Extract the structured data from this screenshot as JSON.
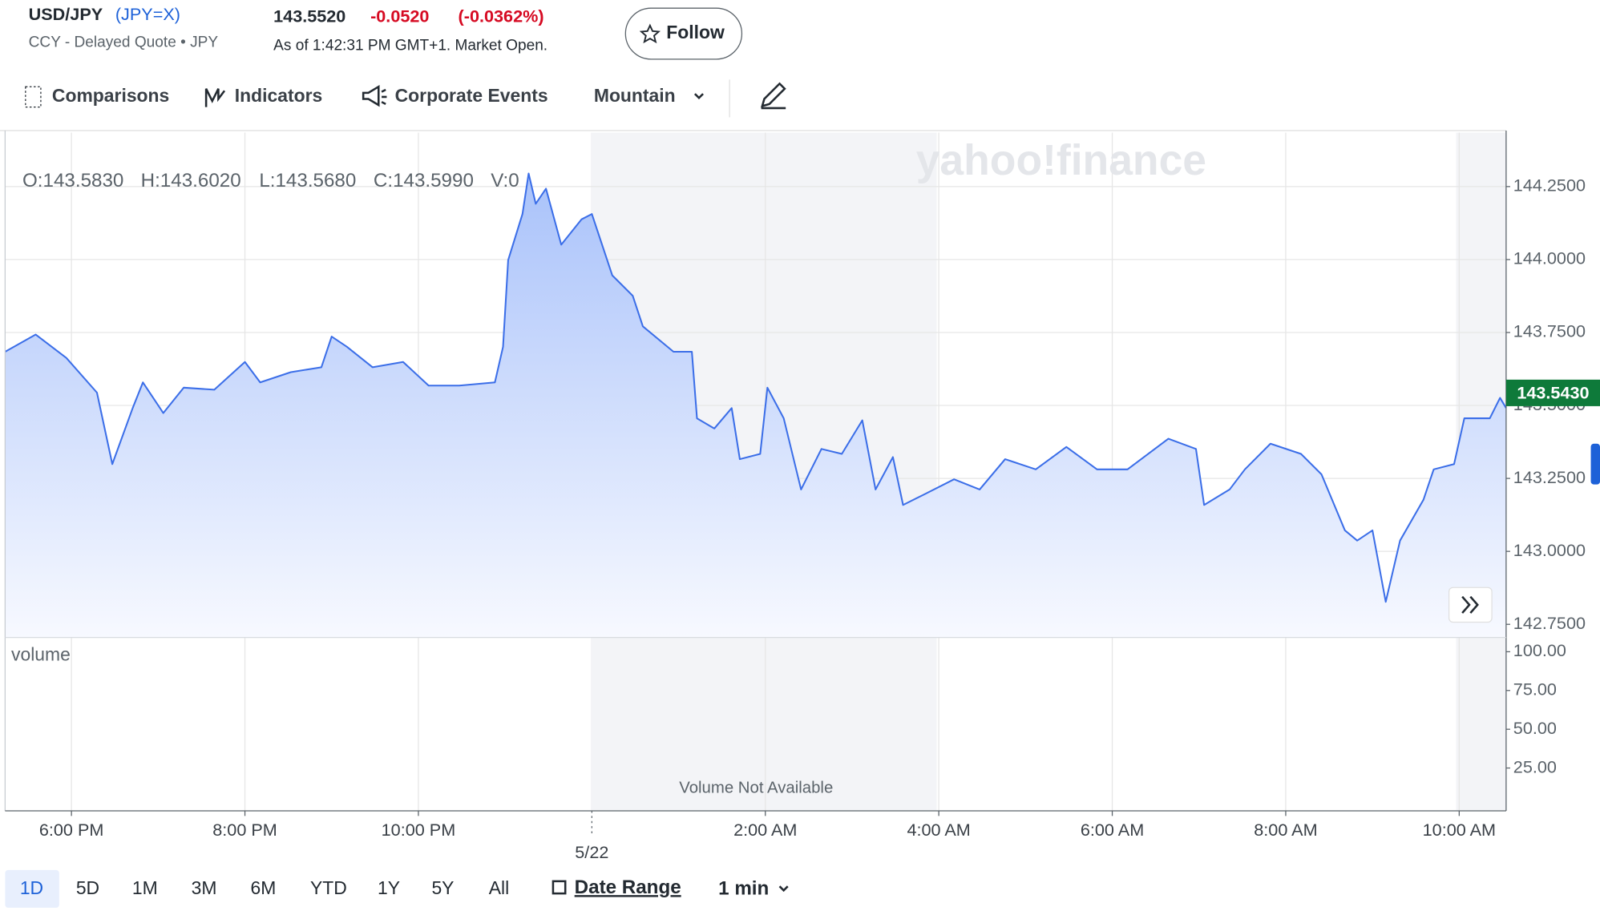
{
  "header": {
    "symbol": "USD/JPY",
    "ticker": "(JPY=X)",
    "quote_type": "CCY - Delayed Quote • JPY",
    "price": "143.5520",
    "change": "-0.0520",
    "change_percent": "(-0.0362%)",
    "as_of": "As of 1:42:31 PM GMT+1. Market Open.",
    "follow": "Follow"
  },
  "toolbar": [
    "Comparisons",
    "Indicators",
    "Corporate Events",
    "Mountain"
  ],
  "ranges": [
    "1D",
    "5D",
    "1M",
    "3M",
    "6M",
    "YTD",
    "1Y",
    "5Y",
    "All"
  ],
  "date_range": "Date Range",
  "interval": "1 min",
  "chart_data": {
    "type": "area",
    "watermark": "yahoo!finance",
    "ohlc": [
      "O:143.5830",
      "H:143.6020",
      "L:143.5680",
      "C:143.5990",
      "V:0"
    ],
    "x": [
      17.235,
      17.588,
      17.941,
      18.294,
      18.471,
      18.706,
      18.824,
      19.059,
      19.294,
      19.647,
      20.0,
      20.176,
      20.529,
      20.882,
      21.0,
      21.176,
      21.471,
      21.824,
      22.118,
      22.471,
      22.882,
      22.976,
      23.035,
      23.2,
      23.271,
      23.353,
      23.471,
      23.647,
      23.882,
      24.0,
      24.235,
      24.471,
      24.588,
      24.941,
      25.153,
      25.212,
      25.412,
      25.612,
      25.706,
      25.941,
      26.024,
      26.212,
      26.412,
      26.647,
      26.882,
      27.118,
      27.271,
      27.471,
      27.588,
      27.824,
      28.176,
      28.471,
      28.765,
      29.118,
      29.471,
      29.824,
      30.176,
      30.647,
      30.965,
      31.059,
      31.353,
      31.529,
      31.824,
      32.176,
      32.412,
      32.682,
      32.824,
      33.0,
      33.153,
      33.318,
      33.588,
      33.706,
      33.941,
      34.059,
      34.353,
      34.471,
      34.541
    ],
    "values": [
      143.684,
      143.743,
      143.663,
      143.544,
      143.299,
      143.491,
      143.579,
      143.474,
      143.561,
      143.554,
      143.649,
      143.579,
      143.614,
      143.631,
      143.736,
      143.701,
      143.631,
      143.649,
      143.568,
      143.568,
      143.579,
      143.701,
      143.998,
      144.156,
      144.295,
      144.191,
      144.243,
      144.051,
      144.138,
      144.156,
      143.946,
      143.876,
      143.771,
      143.684,
      143.684,
      143.456,
      143.421,
      143.491,
      143.316,
      143.334,
      143.561,
      143.456,
      143.212,
      143.351,
      143.334,
      143.449,
      143.212,
      143.323,
      143.159,
      143.194,
      143.247,
      143.212,
      143.316,
      143.281,
      143.358,
      143.281,
      143.281,
      143.386,
      143.351,
      143.159,
      143.212,
      143.281,
      143.369,
      143.334,
      143.264,
      143.072,
      143.037,
      143.072,
      142.827,
      143.037,
      143.177,
      143.281,
      143.299,
      143.456,
      143.456,
      143.526,
      143.491
    ],
    "color": "#3b6ee8",
    "grid": true,
    "xlim": [
      17.235,
      34.541
    ],
    "xticks": [
      {
        "value": 18,
        "label": "6:00 PM"
      },
      {
        "value": 20,
        "label": "8:00 PM"
      },
      {
        "value": 22,
        "label": "10:00 PM"
      },
      {
        "value": 26,
        "label": "2:00 AM"
      },
      {
        "value": 28,
        "label": "4:00 AM"
      },
      {
        "value": 30,
        "label": "6:00 AM"
      },
      {
        "value": 32,
        "label": "8:00 AM"
      },
      {
        "value": 34,
        "label": "10:00 AM"
      }
    ],
    "date_marker": {
      "value": 24,
      "label": "5/22"
    },
    "ylim": [
      142.705,
      144.435
    ],
    "yticks": [
      {
        "value": 144.25,
        "label": "144.2500"
      },
      {
        "value": 144.0,
        "label": "144.0000"
      },
      {
        "value": 143.75,
        "label": "143.7500"
      },
      {
        "value": 143.5,
        "label": "143.5000"
      },
      {
        "value": 143.25,
        "label": "143.2500"
      },
      {
        "value": 143.0,
        "label": "143.0000"
      },
      {
        "value": 142.75,
        "label": "142.7500"
      }
    ],
    "last_price": {
      "value": 143.543,
      "label": "143.5430"
    },
    "volume": {
      "label": "volume",
      "note": "Volume Not Available",
      "ylim": [
        -2.63,
        109.21
      ],
      "yticks": [
        {
          "value": 100,
          "label": "100.00"
        },
        {
          "value": 75,
          "label": "75.00"
        },
        {
          "value": 50,
          "label": "50.00"
        },
        {
          "value": 25,
          "label": "25.00"
        }
      ]
    }
  }
}
